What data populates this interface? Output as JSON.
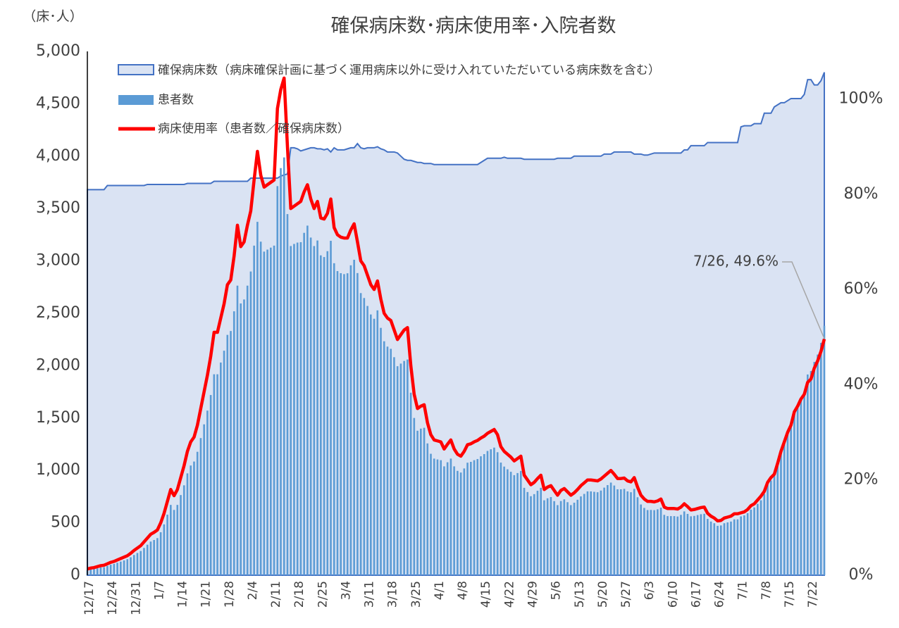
{
  "chart_data": {
    "type": "bar",
    "title": "確保病床数･病床使用率･入院者数",
    "y_axis_label": "（床･人）",
    "annotation": "7/26, 49.6%",
    "ylim": [
      0,
      5000
    ],
    "yticks": [
      0,
      500,
      {
        "value": 1000,
        "label": "1,000"
      },
      {
        "value": 1500,
        "label": "1,500"
      },
      {
        "value": 2000,
        "label": "2,000"
      },
      {
        "value": 2500,
        "label": "2,500"
      },
      {
        "value": 3000,
        "label": "3,000"
      },
      {
        "value": 3500,
        "label": "3,500"
      },
      {
        "value": 4000,
        "label": "4,000"
      },
      {
        "value": 4500,
        "label": "4,500"
      },
      {
        "value": 5000,
        "label": "5,000"
      }
    ],
    "y2lim": [
      0,
      110
    ],
    "y2ticks": [
      {
        "value": 0,
        "label": "0%"
      },
      {
        "value": 20,
        "label": "20%"
      },
      {
        "value": 40,
        "label": "40%"
      },
      {
        "value": 60,
        "label": "60%"
      },
      {
        "value": 80,
        "label": "80%"
      },
      {
        "value": 100,
        "label": "100%"
      }
    ],
    "categories": [
      "12/17",
      null,
      null,
      null,
      null,
      null,
      null,
      "12/24",
      null,
      null,
      null,
      null,
      null,
      null,
      "12/31",
      null,
      null,
      null,
      null,
      null,
      null,
      "1/7",
      null,
      null,
      null,
      null,
      null,
      null,
      "1/14",
      null,
      null,
      null,
      null,
      null,
      null,
      "1/21",
      null,
      null,
      null,
      null,
      null,
      null,
      "1/28",
      null,
      null,
      null,
      null,
      null,
      null,
      "2/4",
      null,
      null,
      null,
      null,
      null,
      null,
      "2/11",
      null,
      null,
      null,
      null,
      null,
      null,
      "2/18",
      null,
      null,
      null,
      null,
      null,
      null,
      "2/25",
      null,
      null,
      null,
      null,
      null,
      null,
      "3/4",
      null,
      null,
      null,
      null,
      null,
      null,
      "3/11",
      null,
      null,
      null,
      null,
      null,
      null,
      "3/18",
      null,
      null,
      null,
      null,
      null,
      null,
      "3/25",
      null,
      null,
      null,
      null,
      null,
      null,
      "4/1",
      null,
      null,
      null,
      null,
      null,
      null,
      "4/8",
      null,
      null,
      null,
      null,
      null,
      null,
      "4/15",
      null,
      null,
      null,
      null,
      null,
      null,
      "4/22",
      null,
      null,
      null,
      null,
      null,
      null,
      "4/29",
      null,
      null,
      null,
      null,
      null,
      null,
      "5/6",
      null,
      null,
      null,
      null,
      null,
      null,
      "5/13",
      null,
      null,
      null,
      null,
      null,
      null,
      "5/20",
      null,
      null,
      null,
      null,
      null,
      null,
      "5/27",
      null,
      null,
      null,
      null,
      null,
      null,
      "6/3",
      null,
      null,
      null,
      null,
      null,
      null,
      "6/10",
      null,
      null,
      null,
      null,
      null,
      null,
      "6/17",
      null,
      null,
      null,
      null,
      null,
      null,
      "6/24",
      null,
      null,
      null,
      null,
      null,
      null,
      "7/1",
      null,
      null,
      null,
      null,
      null,
      null,
      "7/8",
      null,
      null,
      null,
      null,
      null,
      null,
      "7/15",
      null,
      null,
      null,
      null,
      null,
      null,
      "7/22",
      null,
      null,
      null,
      null
    ],
    "series": [
      {
        "name": "確保病床数（病床確保計画に基づく運用病床以外に受け入れていただいている病床数を含む）",
        "type": "area",
        "color": "#4472c4",
        "fill": "#dae3f3",
        "values": [
          3680,
          3680,
          3680,
          3680,
          3680,
          3680,
          3720,
          3720,
          3720,
          3720,
          3720,
          3720,
          3720,
          3720,
          3720,
          3720,
          3720,
          3720,
          3730,
          3730,
          3730,
          3730,
          3730,
          3730,
          3730,
          3730,
          3730,
          3730,
          3730,
          3730,
          3740,
          3740,
          3740,
          3740,
          3740,
          3740,
          3740,
          3740,
          3760,
          3760,
          3760,
          3760,
          3760,
          3760,
          3760,
          3760,
          3760,
          3760,
          3760,
          3790,
          3790,
          3790,
          3790,
          3790,
          3790,
          3790,
          3790,
          3790,
          3810,
          3820,
          3830,
          4080,
          4080,
          4070,
          4050,
          4060,
          4070,
          4080,
          4080,
          4070,
          4070,
          4060,
          4070,
          4040,
          4080,
          4060,
          4060,
          4060,
          4070,
          4080,
          4080,
          4120,
          4080,
          4070,
          4080,
          4080,
          4080,
          4090,
          4070,
          4060,
          4040,
          4040,
          4040,
          4030,
          4000,
          3970,
          3960,
          3960,
          3950,
          3940,
          3940,
          3930,
          3930,
          3930,
          3920,
          3920,
          3920,
          3920,
          3920,
          3920,
          3920,
          3920,
          3920,
          3920,
          3920,
          3920,
          3920,
          3920,
          3940,
          3960,
          3980,
          3980,
          3980,
          3980,
          3980,
          3990,
          3980,
          3980,
          3980,
          3980,
          3980,
          3970,
          3970,
          3970,
          3970,
          3970,
          3970,
          3970,
          3970,
          3970,
          3970,
          3980,
          3980,
          3980,
          3980,
          3980,
          4000,
          4000,
          4000,
          4000,
          4000,
          4000,
          4000,
          4000,
          4000,
          4020,
          4020,
          4020,
          4040,
          4040,
          4040,
          4040,
          4040,
          4040,
          4020,
          4020,
          4020,
          4010,
          4010,
          4020,
          4030,
          4030,
          4030,
          4030,
          4030,
          4030,
          4030,
          4030,
          4030,
          4060,
          4060,
          4100,
          4100,
          4100,
          4100,
          4100,
          4130,
          4130,
          4130,
          4130,
          4130,
          4130,
          4130,
          4130,
          4130,
          4130,
          4280,
          4290,
          4290,
          4290,
          4310,
          4310,
          4310,
          4410,
          4410,
          4410,
          4470,
          4490,
          4510,
          4510,
          4530,
          4550,
          4550,
          4550,
          4550,
          4590,
          4730,
          4730,
          4680,
          4680,
          4720,
          4800
        ]
      },
      {
        "name": "患者数",
        "type": "bar",
        "color": "#5b9bd5",
        "values": [
          48,
          55,
          59,
          66,
          74,
          77,
          89,
          100,
          108,
          119,
          130,
          141,
          153,
          171,
          193,
          212,
          231,
          260,
          291,
          321,
          336,
          354,
          410,
          485,
          578,
          671,
          623,
          671,
          765,
          858,
          972,
          1047,
          1085,
          1178,
          1309,
          1440,
          1571,
          1720,
          1918,
          1918,
          2030,
          2143,
          2294,
          2331,
          2519,
          2764,
          2594,
          2632,
          2764,
          2899,
          3146,
          3373,
          3184,
          3089,
          3108,
          3127,
          3146,
          3714,
          3886,
          3988,
          3447,
          3142,
          3162,
          3175,
          3179,
          3268,
          3337,
          3223,
          3142,
          3195,
          3053,
          3037,
          3093,
          3192,
          2978,
          2903,
          2883,
          2874,
          2882,
          2958,
          3011,
          2884,
          2693,
          2646,
          2570,
          2489,
          2448,
          2528,
          2361,
          2233,
          2182,
          2161,
          2081,
          1995,
          2020,
          2045,
          2059,
          1742,
          1501,
          1379,
          1399,
          1407,
          1258,
          1159,
          1113,
          1105,
          1098,
          1039,
          1078,
          1113,
          1039,
          996,
          980,
          1019,
          1074,
          1082,
          1098,
          1109,
          1135,
          1156,
          1186,
          1202,
          1218,
          1174,
          1075,
          1037,
          1011,
          987,
          955,
          975,
          995,
          834,
          794,
          754,
          774,
          806,
          834,
          715,
          734,
          746,
          707,
          669,
          708,
          724,
          697,
          669,
          692,
          720,
          752,
          776,
          800,
          800,
          796,
          792,
          808,
          836,
          860,
          884,
          856,
          820,
          820,
          824,
          800,
          792,
          824,
          744,
          675,
          642,
          622,
          623,
          621,
          629,
          645,
          576,
          564,
          564,
          564,
          560,
          576,
          609,
          585,
          562,
          566,
          574,
          582,
          586,
          537,
          512,
          496,
          471,
          475,
          496,
          504,
          512,
          533,
          533,
          561,
          571,
          592,
          626,
          647,
          681,
          715,
          776,
          860,
          904,
          948,
          1055,
          1173,
          1263,
          1359,
          1433,
          1561,
          1615,
          1684,
          1744,
          1916,
          1949,
          2036,
          2106,
          2218,
          2381
        ]
      },
      {
        "name": "病床使用率（患者数／確保病床数）",
        "type": "line",
        "axis": "y2",
        "color": "#ff0000",
        "values": [
          1.3,
          1.5,
          1.6,
          1.8,
          2.0,
          2.1,
          2.4,
          2.7,
          2.9,
          3.2,
          3.5,
          3.8,
          4.1,
          4.6,
          5.2,
          5.7,
          6.2,
          7.0,
          7.8,
          8.6,
          9.0,
          9.5,
          11,
          13,
          15.5,
          18,
          16.7,
          18,
          20.5,
          23,
          26,
          28,
          29,
          31.5,
          35,
          38.5,
          42,
          46,
          51,
          51,
          54,
          57,
          61,
          62,
          67,
          73.5,
          69,
          70,
          73.5,
          76.5,
          83,
          89,
          84,
          81.5,
          82,
          82.5,
          83,
          98,
          102,
          104.4,
          90,
          77,
          77.5,
          78,
          78.5,
          80.5,
          82,
          79,
          77,
          78.5,
          75,
          74.8,
          76,
          79,
          73,
          71.5,
          71,
          70.8,
          70.8,
          72.5,
          73.8,
          70,
          66,
          65,
          63,
          61,
          60,
          61.8,
          58,
          55,
          54,
          53.5,
          51.5,
          49.5,
          50.5,
          51.5,
          52,
          44,
          38,
          35,
          35.5,
          35.8,
          32,
          29.5,
          28.4,
          28.2,
          28,
          26.5,
          27.5,
          28.4,
          26.5,
          25.4,
          25,
          26,
          27.4,
          27.6,
          28,
          28.3,
          28.8,
          29.2,
          29.8,
          30.2,
          30.6,
          29.5,
          27,
          26,
          25.4,
          24.8,
          24,
          24.5,
          25,
          21,
          20,
          19,
          19.5,
          20.3,
          21,
          18,
          18.5,
          18.8,
          17.8,
          16.8,
          17.8,
          18.2,
          17.5,
          16.8,
          17.3,
          18,
          18.8,
          19.4,
          20,
          20,
          19.9,
          19.8,
          20.2,
          20.8,
          21.4,
          22,
          21.2,
          20.3,
          20.3,
          20.4,
          19.8,
          19.6,
          20.5,
          18.5,
          16.8,
          16,
          15.5,
          15.5,
          15.4,
          15.6,
          16,
          14.3,
          14,
          14,
          14,
          13.9,
          14.3,
          15,
          14.4,
          13.7,
          13.8,
          14,
          14.2,
          14.3,
          13,
          12.4,
          12,
          11.4,
          11.5,
          12,
          12.2,
          12.4,
          12.9,
          12.9,
          13.1,
          13.3,
          13.8,
          14.6,
          15,
          15.8,
          16.6,
          17.6,
          19.5,
          20.5,
          21.2,
          23.5,
          26,
          28,
          30,
          31.5,
          34.3,
          35.5,
          37,
          38,
          40.5,
          41.2,
          43.5,
          45,
          47,
          49.6
        ]
      }
    ]
  }
}
